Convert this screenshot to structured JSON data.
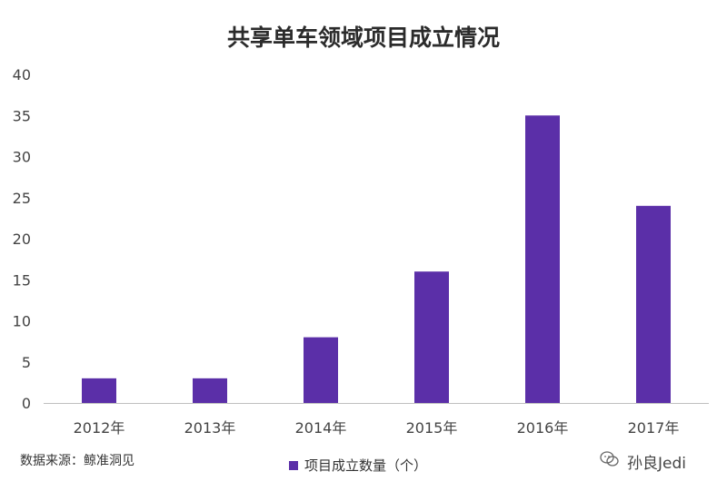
{
  "chart_data": {
    "type": "bar",
    "title": "共享单车领域项目成立情况",
    "categories": [
      "2012年",
      "2013年",
      "2014年",
      "2015年",
      "2016年",
      "2017年"
    ],
    "series": [
      {
        "name": "项目成立数量（个）",
        "values": [
          3,
          3,
          8,
          16,
          35,
          24
        ]
      }
    ],
    "ylim": [
      0,
      40
    ],
    "yticks": [
      0,
      5,
      10,
      15,
      20,
      25,
      30,
      35,
      40
    ],
    "grid": false,
    "legend": "bottom-center",
    "bar_color": "#5b2fa8"
  },
  "source_text": "数据来源：鲸准洞见",
  "watermark_text": "孙良Jedi",
  "watermark_icon": "wechat-icon"
}
